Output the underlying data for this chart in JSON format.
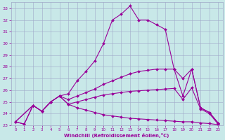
{
  "xlabel": "Windchill (Refroidissement éolien,°C)",
  "bg_color": "#c8e8e8",
  "grid_color": "#a0a8c8",
  "line_color": "#990099",
  "xlim": [
    -0.5,
    23.5
  ],
  "ylim": [
    23,
    33.5
  ],
  "yticks": [
    23,
    24,
    25,
    26,
    27,
    28,
    29,
    30,
    31,
    32,
    33
  ],
  "xticks": [
    0,
    1,
    2,
    3,
    4,
    5,
    6,
    7,
    8,
    9,
    10,
    11,
    12,
    13,
    14,
    15,
    16,
    17,
    18,
    19,
    20,
    21,
    22,
    23
  ],
  "line1_x": [
    0,
    1,
    2,
    3,
    4,
    5,
    6,
    7,
    8,
    9,
    10,
    11,
    12,
    13,
    14,
    15,
    16,
    17,
    18,
    19,
    20,
    21,
    22,
    23
  ],
  "line1_y": [
    23.3,
    23.1,
    24.7,
    24.2,
    25.0,
    25.5,
    25.7,
    26.8,
    27.6,
    28.5,
    30.0,
    32.0,
    32.5,
    33.2,
    32.0,
    32.0,
    31.6,
    31.2,
    27.8,
    27.0,
    27.8,
    24.5,
    24.1,
    23.2
  ],
  "line2_x": [
    0,
    2,
    3,
    4,
    5,
    6,
    7,
    8,
    9,
    10,
    11,
    12,
    13,
    14,
    15,
    16,
    17,
    18,
    19,
    20,
    21,
    22,
    23
  ],
  "line2_y": [
    23.3,
    24.7,
    24.2,
    25.0,
    25.5,
    25.2,
    25.5,
    25.8,
    26.1,
    26.5,
    26.8,
    27.1,
    27.4,
    27.6,
    27.7,
    27.8,
    27.8,
    27.8,
    25.5,
    27.8,
    24.5,
    24.1,
    23.2
  ],
  "line3_x": [
    0,
    2,
    3,
    4,
    5,
    6,
    7,
    8,
    9,
    10,
    11,
    12,
    13,
    14,
    15,
    16,
    17,
    18,
    19,
    20,
    21,
    22,
    23
  ],
  "line3_y": [
    23.3,
    24.7,
    24.2,
    25.0,
    25.5,
    24.8,
    25.0,
    25.2,
    25.4,
    25.6,
    25.7,
    25.8,
    25.9,
    25.95,
    26.0,
    26.05,
    26.1,
    26.15,
    25.2,
    26.2,
    24.4,
    24.0,
    23.1
  ],
  "line4_x": [
    0,
    1,
    2,
    3,
    4,
    5,
    6,
    7,
    8,
    9,
    10,
    11,
    12,
    13,
    14,
    15,
    16,
    17,
    18,
    19,
    20,
    21,
    22,
    23
  ],
  "line4_y": [
    23.3,
    23.1,
    24.7,
    24.2,
    25.0,
    25.5,
    24.8,
    24.5,
    24.3,
    24.1,
    23.9,
    23.8,
    23.7,
    23.6,
    23.55,
    23.5,
    23.45,
    23.4,
    23.35,
    23.3,
    23.3,
    23.2,
    23.15,
    23.05
  ]
}
